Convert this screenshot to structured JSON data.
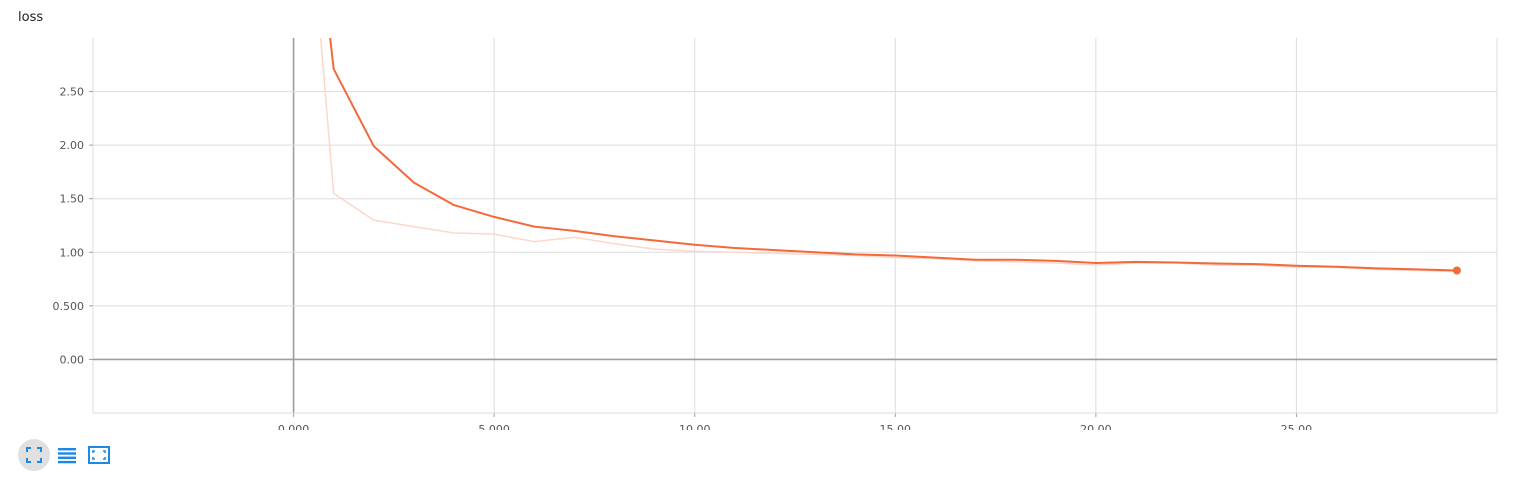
{
  "chart_title": "loss",
  "toolbar": {
    "buttons": [
      {
        "icon": "fullscreen-icon",
        "active": true
      },
      {
        "icon": "list-icon",
        "active": false
      },
      {
        "icon": "fit-domain-icon",
        "active": false
      }
    ]
  },
  "colors": {
    "smoothed": "#f4683a",
    "raw": "#fcd7ca",
    "grid": "#dddddd",
    "axis": "#9e9e9e",
    "icon": "#1e88e5"
  },
  "chart_data": {
    "type": "line",
    "title": "loss",
    "xlabel": "",
    "ylabel": "",
    "xlim": [
      -5.0,
      30.0
    ],
    "ylim": [
      -0.5,
      3.0
    ],
    "xticks": [
      0,
      5,
      10,
      15,
      20,
      25
    ],
    "xtick_labels": [
      "0.000",
      "5.000",
      "10.00",
      "15.00",
      "20.00",
      "25.00"
    ],
    "yticks": [
      0,
      0.5,
      1.0,
      1.5,
      2.0,
      2.5
    ],
    "ytick_labels": [
      "0.00",
      "0.500",
      "1.00",
      "1.50",
      "2.00",
      "2.50"
    ],
    "grid": true,
    "series": [
      {
        "role": "raw",
        "x": [
          0,
          1,
          2,
          3,
          4,
          5,
          6,
          7,
          8,
          9,
          10,
          11,
          12,
          13,
          14,
          15,
          16,
          17,
          18,
          19,
          20,
          21,
          22,
          23,
          24,
          25,
          26,
          27,
          28,
          29
        ],
        "values": [
          6.0,
          1.55,
          1.3,
          1.24,
          1.18,
          1.17,
          1.1,
          1.14,
          1.08,
          1.03,
          1.01,
          1.0,
          0.99,
          0.98,
          0.97,
          0.95,
          0.94,
          0.92,
          0.91,
          0.9,
          0.88,
          0.9,
          0.9,
          0.88,
          0.88,
          0.86,
          0.86,
          0.84,
          0.83,
          0.82
        ]
      },
      {
        "role": "smoothed",
        "x": [
          0,
          1,
          2,
          3,
          4,
          5,
          6,
          7,
          8,
          9,
          10,
          11,
          12,
          13,
          14,
          15,
          16,
          17,
          18,
          19,
          20,
          21,
          22,
          23,
          24,
          25,
          26,
          27,
          28,
          29
        ],
        "values": [
          6.0,
          2.71,
          1.99,
          1.65,
          1.44,
          1.33,
          1.24,
          1.2,
          1.15,
          1.11,
          1.07,
          1.04,
          1.02,
          1.0,
          0.98,
          0.97,
          0.95,
          0.93,
          0.93,
          0.92,
          0.9,
          0.91,
          0.905,
          0.895,
          0.89,
          0.875,
          0.865,
          0.85,
          0.84,
          0.83
        ]
      }
    ]
  }
}
